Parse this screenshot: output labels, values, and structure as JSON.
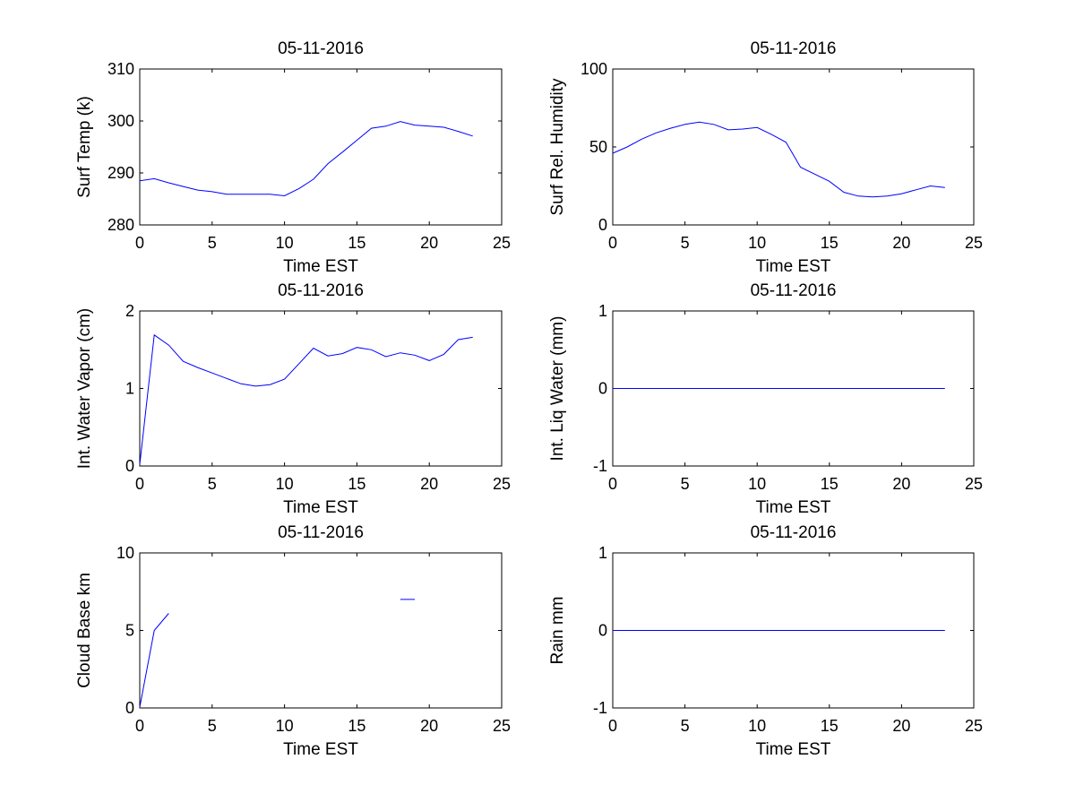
{
  "chart_data": [
    {
      "type": "line",
      "title": "05-11-2016",
      "xlabel": "Time EST",
      "ylabel": "Surf Temp (k)",
      "xlim": [
        0,
        25
      ],
      "ylim": [
        280,
        310
      ],
      "xticks": [
        "0",
        "5",
        "10",
        "15",
        "20",
        "25"
      ],
      "yticks": [
        "280",
        "290",
        "300",
        "310"
      ],
      "grid": false,
      "line_color": "#0000ff",
      "segments": [
        {
          "x": [
            0,
            1,
            2,
            3,
            4,
            5,
            6,
            7,
            8,
            9,
            10,
            11,
            12,
            13,
            14,
            15,
            16,
            17,
            18,
            19,
            20,
            21,
            22,
            23
          ],
          "y": [
            288.5,
            288.9,
            288.1,
            287.4,
            286.7,
            286.4,
            285.9,
            285.9,
            285.9,
            285.9,
            285.6,
            287.0,
            288.8,
            291.8,
            294.0,
            296.3,
            298.6,
            299.0,
            299.9,
            299.2,
            299.0,
            298.8,
            298.0,
            297.1
          ]
        }
      ]
    },
    {
      "type": "line",
      "title": "05-11-2016",
      "xlabel": "Time EST",
      "ylabel": "Surf Rel. Humidity",
      "xlim": [
        0,
        25
      ],
      "ylim": [
        0,
        100
      ],
      "xticks": [
        "0",
        "5",
        "10",
        "15",
        "20",
        "25"
      ],
      "yticks": [
        "0",
        "50",
        "100"
      ],
      "grid": false,
      "line_color": "#0000ff",
      "segments": [
        {
          "x": [
            0,
            1,
            2,
            3,
            4,
            5,
            6,
            7,
            8,
            9,
            10,
            11,
            12,
            13,
            14,
            15,
            16,
            17,
            18,
            19,
            20,
            21,
            22,
            23
          ],
          "y": [
            46,
            50,
            55,
            59,
            62,
            64.5,
            66,
            64.5,
            61,
            61.5,
            62.5,
            58,
            53,
            37,
            32.5,
            28,
            21,
            18.5,
            18,
            18.5,
            20,
            22.5,
            25,
            24
          ]
        }
      ]
    },
    {
      "type": "line",
      "title": "05-11-2016",
      "xlabel": "Time EST",
      "ylabel": "Int. Water Vapor (cm)",
      "xlim": [
        0,
        25
      ],
      "ylim": [
        0,
        2
      ],
      "xticks": [
        "0",
        "5",
        "10",
        "15",
        "20",
        "25"
      ],
      "yticks": [
        "0",
        "1",
        "2"
      ],
      "grid": false,
      "line_color": "#0000ff",
      "segments": [
        {
          "x": [
            0,
            1,
            2,
            3,
            4,
            5,
            6,
            7,
            8,
            9,
            10,
            11,
            12,
            13,
            14,
            15,
            16,
            17,
            18,
            19,
            20,
            21,
            22,
            23
          ],
          "y": [
            0.02,
            1.69,
            1.56,
            1.35,
            1.27,
            1.2,
            1.13,
            1.06,
            1.03,
            1.05,
            1.12,
            1.32,
            1.52,
            1.42,
            1.45,
            1.53,
            1.5,
            1.41,
            1.46,
            1.43,
            1.36,
            1.44,
            1.63,
            1.66
          ]
        }
      ]
    },
    {
      "type": "line",
      "title": "05-11-2016",
      "xlabel": "Time EST",
      "ylabel": "Int. Liq Water (mm)",
      "xlim": [
        0,
        25
      ],
      "ylim": [
        -1,
        1
      ],
      "xticks": [
        "0",
        "5",
        "10",
        "15",
        "20",
        "25"
      ],
      "yticks": [
        "-1",
        "0",
        "1"
      ],
      "grid": false,
      "line_color": "#0000ff",
      "segments": [
        {
          "x": [
            0,
            1,
            2,
            3,
            4,
            5,
            6,
            7,
            8,
            9,
            10,
            11,
            12,
            13,
            14,
            15,
            16,
            17,
            18,
            19,
            20,
            21,
            22,
            23
          ],
          "y": [
            0,
            0,
            0,
            0,
            0,
            0,
            0,
            0,
            0,
            0,
            0,
            0,
            0,
            0,
            0,
            0,
            0,
            0,
            0,
            0,
            0,
            0,
            0,
            0
          ]
        }
      ]
    },
    {
      "type": "line",
      "title": "05-11-2016",
      "xlabel": "Time EST",
      "ylabel": "Cloud Base km",
      "xlim": [
        0,
        25
      ],
      "ylim": [
        0,
        10
      ],
      "xticks": [
        "0",
        "5",
        "10",
        "15",
        "20",
        "25"
      ],
      "yticks": [
        "0",
        "5",
        "10"
      ],
      "grid": false,
      "line_color": "#0000ff",
      "segments": [
        {
          "x": [
            0,
            1,
            2
          ],
          "y": [
            0.05,
            5.0,
            6.1
          ]
        },
        {
          "x": [
            18,
            19
          ],
          "y": [
            7.0,
            7.0
          ]
        }
      ]
    },
    {
      "type": "line",
      "title": "05-11-2016",
      "xlabel": "Time EST",
      "ylabel": "Rain mm",
      "xlim": [
        0,
        25
      ],
      "ylim": [
        -1,
        1
      ],
      "xticks": [
        "0",
        "5",
        "10",
        "15",
        "20",
        "25"
      ],
      "yticks": [
        "-1",
        "0",
        "1"
      ],
      "grid": false,
      "line_color": "#0000ff",
      "segments": [
        {
          "x": [
            0,
            1,
            2,
            3,
            4,
            5,
            6,
            7,
            8,
            9,
            10,
            11,
            12,
            13,
            14,
            15,
            16,
            17,
            18,
            19,
            20,
            21,
            22,
            23
          ],
          "y": [
            0,
            0,
            0,
            0,
            0,
            0,
            0,
            0,
            0,
            0,
            0,
            0,
            0,
            0,
            0,
            0,
            0,
            0,
            0,
            0,
            0,
            0,
            0,
            0
          ]
        }
      ]
    }
  ]
}
